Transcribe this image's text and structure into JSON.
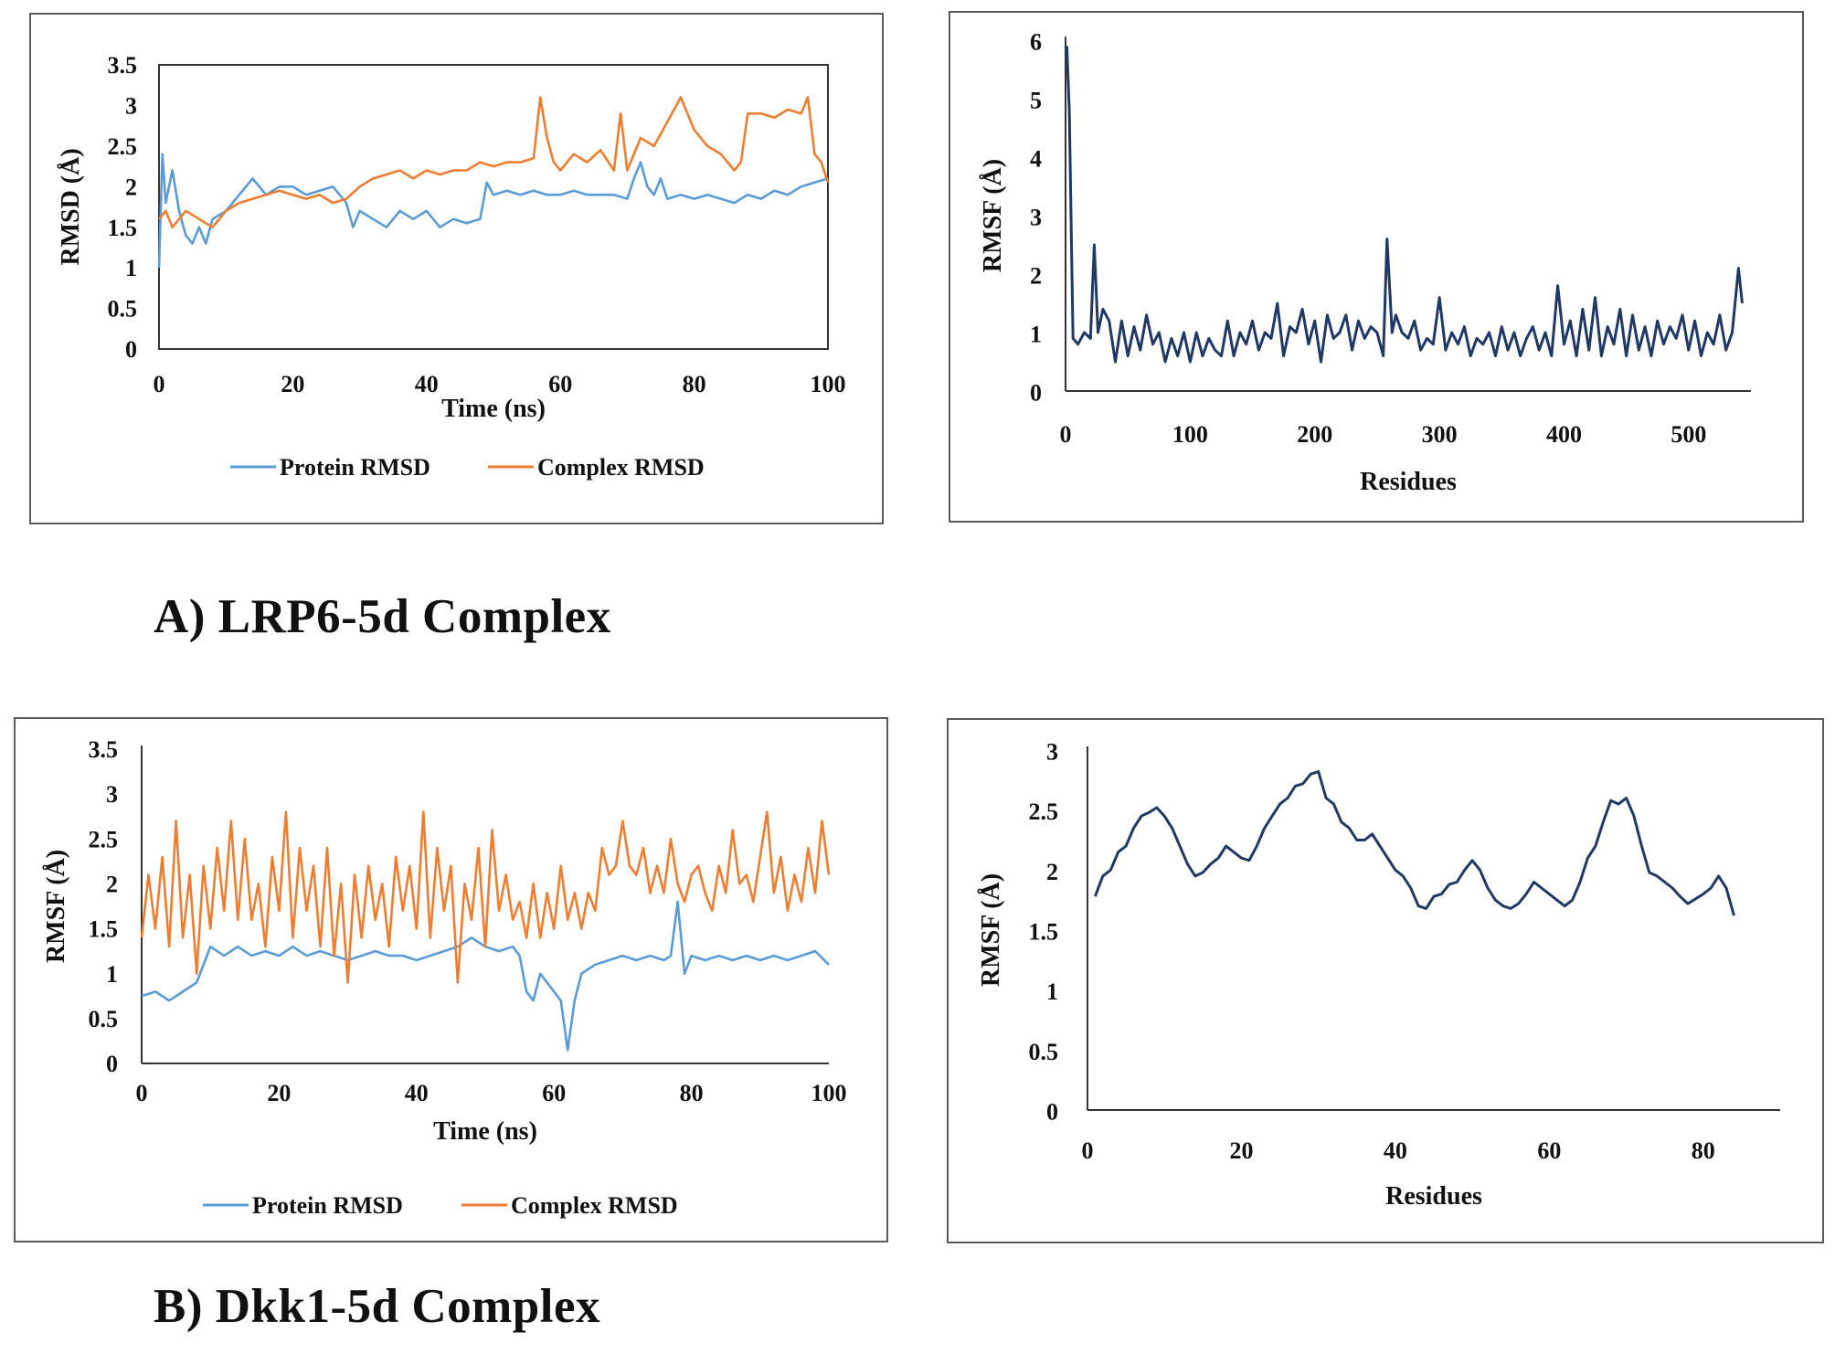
{
  "captions": {
    "a": "A)  LRP6-5d Complex",
    "b": "B) Dkk1-5d Complex"
  },
  "colors": {
    "protein": "#5b9bd5",
    "complex": "#ed7d31",
    "rmsf": "#1f3864"
  },
  "chart_data": [
    {
      "id": "a_rmsd",
      "type": "line",
      "title": "",
      "xlabel": "Time (ns)",
      "ylabel": "RMSD (Å)",
      "xlim": [
        0,
        100
      ],
      "ylim": [
        0,
        3.5
      ],
      "xticks": [
        "0",
        "20",
        "40",
        "60",
        "80",
        "100"
      ],
      "yticks": [
        "0",
        "0.5",
        "1",
        "1.5",
        "2",
        "2.5",
        "3",
        "3.5"
      ],
      "legend": "bottom",
      "series": [
        {
          "name": "Protein RMSD",
          "x": [
            0,
            0.5,
            1,
            2,
            3,
            4,
            5,
            6,
            7,
            8,
            10,
            12,
            14,
            16,
            18,
            20,
            22,
            24,
            26,
            28,
            29,
            30,
            32,
            34,
            36,
            38,
            40,
            42,
            44,
            46,
            48,
            49,
            50,
            52,
            54,
            56,
            58,
            60,
            62,
            64,
            66,
            68,
            70,
            71,
            72,
            73,
            74,
            75,
            76,
            78,
            80,
            82,
            84,
            86,
            88,
            90,
            92,
            94,
            96,
            98,
            100
          ],
          "y": [
            1.0,
            2.4,
            1.8,
            2.2,
            1.7,
            1.4,
            1.3,
            1.5,
            1.3,
            1.6,
            1.7,
            1.9,
            2.1,
            1.9,
            2.0,
            2.0,
            1.9,
            1.95,
            2.0,
            1.8,
            1.5,
            1.7,
            1.6,
            1.5,
            1.7,
            1.6,
            1.7,
            1.5,
            1.6,
            1.55,
            1.6,
            2.05,
            1.9,
            1.95,
            1.9,
            1.95,
            1.9,
            1.9,
            1.95,
            1.9,
            1.9,
            1.9,
            1.85,
            2.1,
            2.3,
            2.0,
            1.9,
            2.1,
            1.85,
            1.9,
            1.85,
            1.9,
            1.85,
            1.8,
            1.9,
            1.85,
            1.95,
            1.9,
            2.0,
            2.05,
            2.1
          ]
        },
        {
          "name": "Complex RMSD",
          "x": [
            0,
            1,
            2,
            4,
            6,
            8,
            10,
            12,
            14,
            16,
            18,
            20,
            22,
            24,
            26,
            28,
            30,
            32,
            34,
            36,
            38,
            40,
            42,
            44,
            46,
            48,
            50,
            52,
            54,
            56,
            57,
            58,
            59,
            60,
            62,
            64,
            66,
            68,
            69,
            70,
            71,
            72,
            74,
            76,
            78,
            80,
            82,
            84,
            86,
            87,
            88,
            90,
            92,
            94,
            96,
            97,
            98,
            99,
            100
          ],
          "y": [
            1.6,
            1.7,
            1.5,
            1.7,
            1.6,
            1.5,
            1.7,
            1.8,
            1.85,
            1.9,
            1.95,
            1.9,
            1.85,
            1.9,
            1.8,
            1.85,
            2.0,
            2.1,
            2.15,
            2.2,
            2.1,
            2.2,
            2.15,
            2.2,
            2.2,
            2.3,
            2.25,
            2.3,
            2.3,
            2.35,
            3.1,
            2.6,
            2.3,
            2.2,
            2.4,
            2.3,
            2.45,
            2.2,
            2.9,
            2.2,
            2.4,
            2.6,
            2.5,
            2.8,
            3.1,
            2.7,
            2.5,
            2.4,
            2.2,
            2.3,
            2.9,
            2.9,
            2.85,
            2.95,
            2.9,
            3.1,
            2.4,
            2.3,
            2.05
          ]
        }
      ]
    },
    {
      "id": "a_rmsf",
      "type": "line",
      "title": "",
      "xlabel": "Residues",
      "ylabel": "RMSF (Å)",
      "xlim": [
        0,
        550
      ],
      "ylim": [
        0,
        6
      ],
      "xticks": [
        "0",
        "100",
        "200",
        "300",
        "400",
        "500"
      ],
      "yticks": [
        "0",
        "1",
        "2",
        "3",
        "4",
        "5",
        "6"
      ],
      "series": [
        {
          "name": "RMSF",
          "x": [
            1,
            3,
            6,
            10,
            15,
            20,
            23,
            26,
            30,
            35,
            40,
            45,
            50,
            55,
            60,
            65,
            70,
            75,
            80,
            85,
            90,
            95,
            100,
            105,
            110,
            115,
            120,
            125,
            130,
            135,
            140,
            145,
            150,
            155,
            160,
            165,
            170,
            175,
            180,
            185,
            190,
            195,
            200,
            205,
            210,
            215,
            220,
            225,
            230,
            235,
            240,
            245,
            250,
            255,
            258,
            262,
            265,
            270,
            275,
            280,
            285,
            290,
            295,
            300,
            305,
            310,
            315,
            320,
            325,
            330,
            335,
            340,
            345,
            350,
            355,
            360,
            365,
            370,
            375,
            380,
            385,
            390,
            395,
            400,
            405,
            410,
            415,
            420,
            425,
            430,
            435,
            440,
            445,
            450,
            455,
            460,
            465,
            470,
            475,
            480,
            485,
            490,
            495,
            500,
            505,
            510,
            515,
            520,
            525,
            530,
            535,
            540,
            543
          ],
          "y": [
            5.9,
            4.8,
            0.9,
            0.8,
            1.0,
            0.9,
            2.5,
            1.0,
            1.4,
            1.2,
            0.5,
            1.2,
            0.6,
            1.1,
            0.7,
            1.3,
            0.8,
            1.0,
            0.5,
            0.9,
            0.6,
            1.0,
            0.5,
            1.0,
            0.6,
            0.9,
            0.7,
            0.6,
            1.2,
            0.6,
            1.0,
            0.8,
            1.2,
            0.7,
            1.0,
            0.9,
            1.5,
            0.6,
            1.1,
            1.0,
            1.4,
            0.8,
            1.2,
            0.5,
            1.3,
            0.9,
            1.0,
            1.3,
            0.7,
            1.2,
            0.9,
            1.1,
            1.0,
            0.6,
            2.6,
            1.0,
            1.3,
            1.0,
            0.9,
            1.2,
            0.7,
            0.9,
            0.8,
            1.6,
            0.7,
            1.0,
            0.8,
            1.1,
            0.6,
            0.9,
            0.8,
            1.0,
            0.6,
            1.1,
            0.7,
            1.0,
            0.6,
            0.9,
            1.1,
            0.7,
            1.0,
            0.6,
            1.8,
            0.8,
            1.2,
            0.6,
            1.4,
            0.7,
            1.6,
            0.6,
            1.1,
            0.8,
            1.4,
            0.6,
            1.3,
            0.7,
            1.1,
            0.6,
            1.2,
            0.8,
            1.1,
            0.9,
            1.3,
            0.7,
            1.2,
            0.6,
            1.0,
            0.8,
            1.3,
            0.7,
            1.0,
            2.1,
            1.5
          ]
        }
      ]
    },
    {
      "id": "b_rmsd",
      "type": "line",
      "title": "",
      "xlabel": "Time (ns)",
      "ylabel": "RMSF (Å)",
      "xlim": [
        0,
        100
      ],
      "ylim": [
        0,
        3.5
      ],
      "xticks": [
        "0",
        "20",
        "40",
        "60",
        "80",
        "100"
      ],
      "yticks": [
        "0",
        "0.5",
        "1",
        "1.5",
        "2",
        "2.5",
        "3",
        "3.5"
      ],
      "legend": "bottom",
      "series": [
        {
          "name": "Protein RMSD",
          "x": [
            0,
            2,
            4,
            6,
            8,
            9,
            10,
            12,
            14,
            16,
            18,
            20,
            22,
            24,
            26,
            28,
            30,
            32,
            34,
            36,
            38,
            40,
            42,
            44,
            46,
            48,
            50,
            52,
            54,
            55,
            56,
            57,
            58,
            60,
            61,
            62,
            63,
            64,
            66,
            68,
            70,
            72,
            74,
            76,
            77,
            78,
            79,
            80,
            82,
            84,
            86,
            88,
            90,
            92,
            94,
            96,
            98,
            100
          ],
          "y": [
            0.75,
            0.8,
            0.7,
            0.8,
            0.9,
            1.1,
            1.3,
            1.2,
            1.3,
            1.2,
            1.25,
            1.2,
            1.3,
            1.2,
            1.25,
            1.2,
            1.15,
            1.2,
            1.25,
            1.2,
            1.2,
            1.15,
            1.2,
            1.25,
            1.3,
            1.4,
            1.3,
            1.25,
            1.3,
            1.2,
            0.8,
            0.7,
            1.0,
            0.8,
            0.7,
            0.15,
            0.7,
            1.0,
            1.1,
            1.15,
            1.2,
            1.15,
            1.2,
            1.15,
            1.2,
            1.8,
            1.0,
            1.2,
            1.15,
            1.2,
            1.15,
            1.2,
            1.15,
            1.2,
            1.15,
            1.2,
            1.25,
            1.1
          ]
        },
        {
          "name": "Complex RMSD",
          "x": [
            0,
            1,
            2,
            3,
            4,
            5,
            6,
            7,
            8,
            9,
            10,
            11,
            12,
            13,
            14,
            15,
            16,
            17,
            18,
            19,
            20,
            21,
            22,
            23,
            24,
            25,
            26,
            27,
            28,
            29,
            30,
            31,
            32,
            33,
            34,
            35,
            36,
            37,
            38,
            39,
            40,
            41,
            42,
            43,
            44,
            45,
            46,
            47,
            48,
            49,
            50,
            51,
            52,
            53,
            54,
            55,
            56,
            57,
            58,
            59,
            60,
            61,
            62,
            63,
            64,
            65,
            66,
            67,
            68,
            69,
            70,
            71,
            72,
            73,
            74,
            75,
            76,
            77,
            78,
            79,
            80,
            81,
            82,
            83,
            84,
            85,
            86,
            87,
            88,
            89,
            90,
            91,
            92,
            93,
            94,
            95,
            96,
            97,
            98,
            99,
            100
          ],
          "y": [
            1.4,
            2.1,
            1.5,
            2.3,
            1.3,
            2.7,
            1.4,
            2.1,
            1.0,
            2.2,
            1.5,
            2.4,
            1.7,
            2.7,
            1.6,
            2.5,
            1.6,
            2.0,
            1.3,
            2.3,
            1.7,
            2.8,
            1.4,
            2.4,
            1.7,
            2.2,
            1.3,
            2.4,
            1.2,
            2.0,
            0.9,
            2.1,
            1.4,
            2.2,
            1.6,
            2.0,
            1.3,
            2.3,
            1.7,
            2.2,
            1.5,
            2.8,
            1.4,
            2.4,
            1.7,
            2.2,
            0.9,
            2.0,
            1.6,
            2.4,
            1.3,
            2.6,
            1.7,
            2.1,
            1.6,
            1.8,
            1.4,
            2.0,
            1.4,
            1.9,
            1.5,
            2.2,
            1.6,
            1.9,
            1.5,
            1.9,
            1.7,
            2.4,
            2.1,
            2.2,
            2.7,
            2.2,
            2.1,
            2.4,
            1.9,
            2.2,
            1.9,
            2.5,
            2.0,
            1.8,
            2.1,
            2.2,
            1.9,
            1.7,
            2.2,
            1.9,
            2.6,
            2.0,
            2.1,
            1.8,
            2.3,
            2.8,
            1.9,
            2.3,
            1.7,
            2.1,
            1.8,
            2.4,
            1.9,
            2.7,
            2.1
          ]
        }
      ]
    },
    {
      "id": "b_rmsf",
      "type": "line",
      "title": "",
      "xlabel": "Residues",
      "ylabel": "RMSF (Å)",
      "xlim": [
        0,
        90
      ],
      "ylim": [
        0,
        3
      ],
      "xticks": [
        "0",
        "20",
        "40",
        "60",
        "80"
      ],
      "yticks": [
        "0",
        "0.5",
        "1",
        "1.5",
        "2",
        "2.5",
        "3"
      ],
      "series": [
        {
          "name": "RMSF",
          "x": [
            1,
            2,
            3,
            4,
            5,
            6,
            7,
            8,
            9,
            10,
            11,
            12,
            13,
            14,
            15,
            16,
            17,
            18,
            19,
            20,
            21,
            22,
            23,
            24,
            25,
            26,
            27,
            28,
            29,
            30,
            31,
            32,
            33,
            34,
            35,
            36,
            37,
            38,
            39,
            40,
            41,
            42,
            43,
            44,
            45,
            46,
            47,
            48,
            49,
            50,
            51,
            52,
            53,
            54,
            55,
            56,
            57,
            58,
            59,
            60,
            61,
            62,
            63,
            64,
            65,
            66,
            67,
            68,
            69,
            70,
            71,
            72,
            73,
            74,
            75,
            76,
            77,
            78,
            79,
            80,
            81,
            82,
            83,
            84
          ],
          "y": [
            1.78,
            1.95,
            2.0,
            2.15,
            2.2,
            2.35,
            2.45,
            2.48,
            2.52,
            2.45,
            2.35,
            2.2,
            2.05,
            1.95,
            1.98,
            2.05,
            2.1,
            2.2,
            2.15,
            2.1,
            2.08,
            2.2,
            2.35,
            2.45,
            2.55,
            2.6,
            2.7,
            2.72,
            2.8,
            2.82,
            2.6,
            2.55,
            2.4,
            2.35,
            2.25,
            2.25,
            2.3,
            2.2,
            2.1,
            2.0,
            1.95,
            1.85,
            1.7,
            1.68,
            1.78,
            1.8,
            1.88,
            1.9,
            2.0,
            2.08,
            2.0,
            1.85,
            1.75,
            1.7,
            1.68,
            1.72,
            1.8,
            1.9,
            1.85,
            1.8,
            1.75,
            1.7,
            1.75,
            1.9,
            2.1,
            2.2,
            2.4,
            2.58,
            2.55,
            2.6,
            2.45,
            2.2,
            1.98,
            1.95,
            1.9,
            1.85,
            1.78,
            1.72,
            1.76,
            1.8,
            1.85,
            1.95,
            1.85,
            1.62
          ]
        }
      ]
    }
  ]
}
